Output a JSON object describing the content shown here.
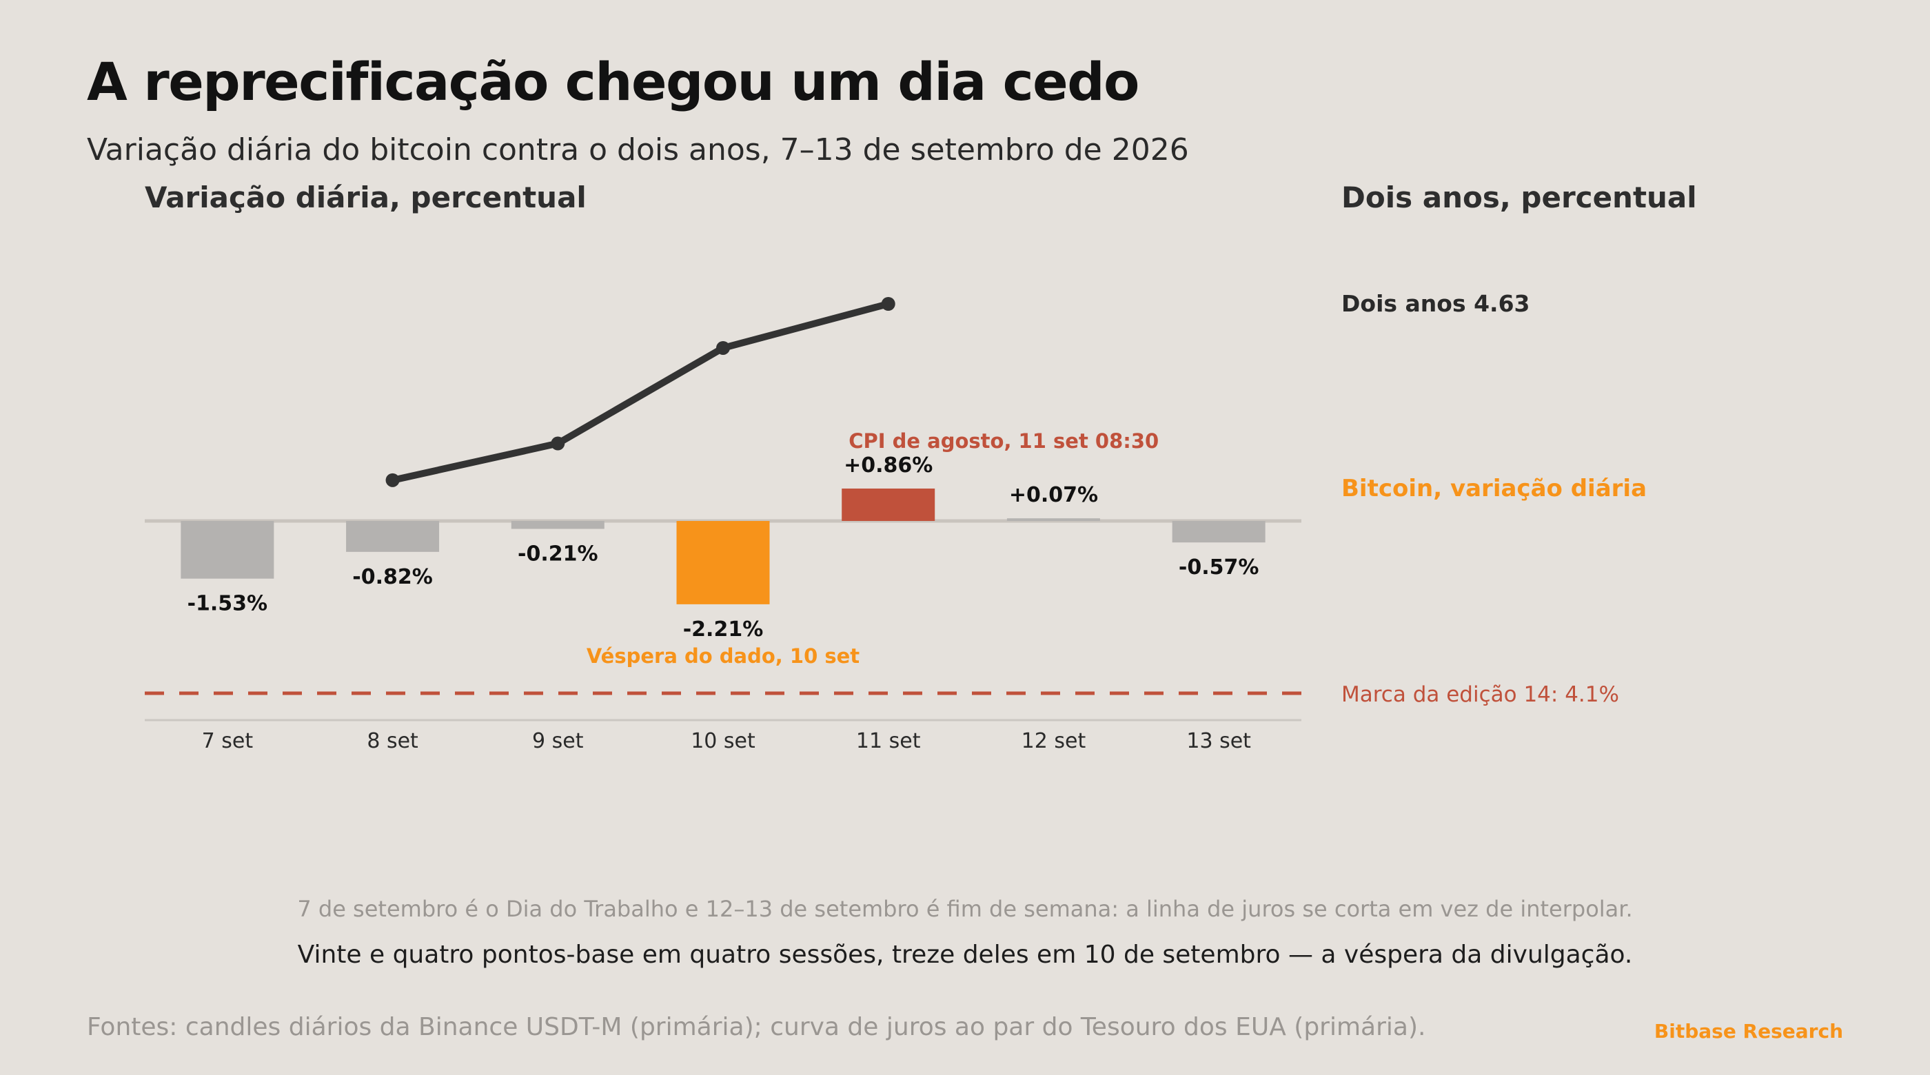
{
  "title": "A reprecificação chegou um dia cedo",
  "subtitle": "Variação diária do bitcoin contra o dois anos, 7–13 de setembro de 2026",
  "panels": {
    "left_label": "Variação diária, percentual",
    "right_label": "Dois anos, percentual"
  },
  "notes": {
    "line1": "7 de setembro é o Dia do Trabalho e 12–13 de setembro é fim de semana: a linha de juros se corta em vez de interpolar.",
    "line2": "Vinte e quatro pontos-base em quatro sessões, treze deles em 10 de setembro — a véspera da divulgação."
  },
  "footer": {
    "sources": "Fontes: candles diários da Binance USDT-M (primária); curva de juros ao par do Tesouro dos EUA (primária).",
    "brand": "Bitbase Research"
  },
  "colors": {
    "background": "#e5e1dc",
    "bar_default": "#b4b2b0",
    "bar_eve": "#f7931a",
    "bar_cpi": "#c0513b",
    "line": "#333333",
    "marker": "#c0513b",
    "axis": "#c9c4be",
    "label_bitcoin": "#f7931a",
    "label_edition": "#c0513b"
  },
  "chart_data": {
    "type": "bar",
    "categories": [
      "7 set",
      "8 set",
      "9 set",
      "10 set",
      "11 set",
      "12 set",
      "13 set"
    ],
    "series": [
      {
        "name": "Bitcoin, variação diária",
        "values": [
          -1.53,
          -0.82,
          -0.21,
          -2.21,
          0.86,
          0.07,
          -0.57
        ],
        "value_labels": [
          "-1.53%",
          "-0.82%",
          "-0.21%",
          "-2.21%",
          "+0.86%",
          "+0.07%",
          "-0.57%"
        ],
        "highlight": [
          "default",
          "default",
          "default",
          "eve",
          "cpi",
          "default",
          "default"
        ]
      },
      {
        "name": "Dois anos",
        "type": "line",
        "values": [
          null,
          4.39,
          4.44,
          4.57,
          4.63,
          null,
          null
        ]
      }
    ],
    "line_end_label": "Dois anos 4.63",
    "bar_legend_label": "Bitcoin, variação diária",
    "annotations": {
      "cpi": "CPI de agosto, 11 set 08:30",
      "eve": "Véspera do dado, 10 set"
    },
    "reference_line": {
      "label": "Marca da edição 14: 4.1%",
      "value": 4.1,
      "style": "dashed"
    },
    "ylabel_left": "Variação diária, percentual",
    "ylabel_right": "Dois anos, percentual",
    "bar_ylim": [
      -2.21,
      0.86
    ],
    "line_ylim": [
      4.1,
      4.63
    ]
  }
}
